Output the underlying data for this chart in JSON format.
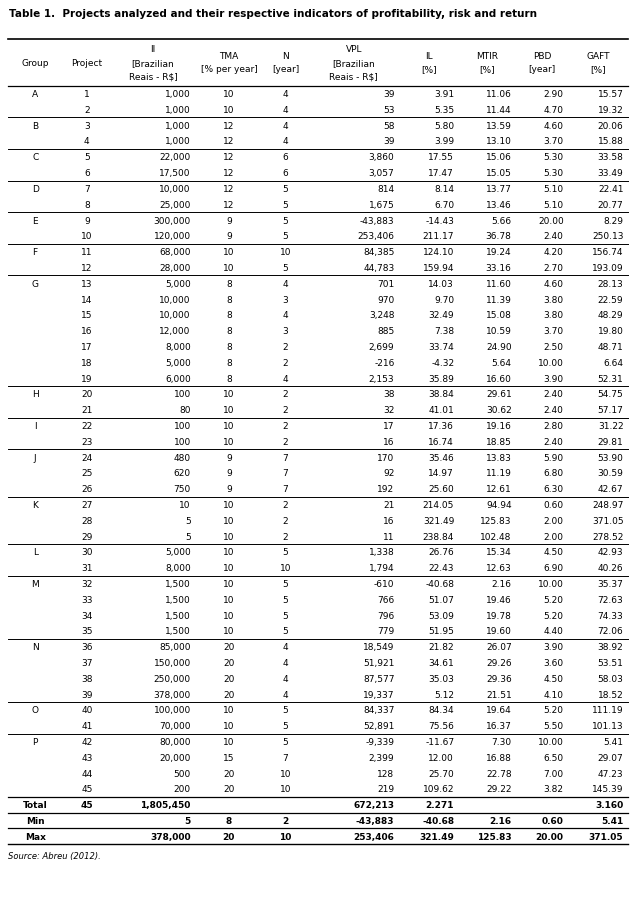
{
  "title": "Table 1.  Projects analyzed and their respective indicators of profitability, risk and return",
  "col_headers_line1": [
    "Group",
    "Project",
    "II",
    "TMA",
    "N",
    "VPL",
    "IL",
    "MTIR",
    "PBD",
    "GAFT"
  ],
  "col_headers_line2": [
    "",
    "",
    "[Brazilian",
    "[% per year]",
    "[year]",
    "[Brazilian",
    "[%]",
    "[%]",
    "[year]",
    "[%]"
  ],
  "col_headers_line3": [
    "",
    "",
    "Reais - R$]",
    "",
    "",
    "Reais - R$]",
    "",
    "",
    "",
    ""
  ],
  "rows": [
    [
      "A",
      "1",
      "1,000",
      "10",
      "4",
      "39",
      "3.91",
      "11.06",
      "2.90",
      "15.57"
    ],
    [
      "",
      "2",
      "1,000",
      "10",
      "4",
      "53",
      "5.35",
      "11.44",
      "4.70",
      "19.32"
    ],
    [
      "B",
      "3",
      "1,000",
      "12",
      "4",
      "58",
      "5.80",
      "13.59",
      "4.60",
      "20.06"
    ],
    [
      "",
      "4",
      "1,000",
      "12",
      "4",
      "39",
      "3.99",
      "13.10",
      "3.70",
      "15.88"
    ],
    [
      "C",
      "5",
      "22,000",
      "12",
      "6",
      "3,860",
      "17.55",
      "15.06",
      "5.30",
      "33.58"
    ],
    [
      "",
      "6",
      "17,500",
      "12",
      "6",
      "3,057",
      "17.47",
      "15.05",
      "5.30",
      "33.49"
    ],
    [
      "D",
      "7",
      "10,000",
      "12",
      "5",
      "814",
      "8.14",
      "13.77",
      "5.10",
      "22.41"
    ],
    [
      "",
      "8",
      "25,000",
      "12",
      "5",
      "1,675",
      "6.70",
      "13.46",
      "5.10",
      "20.77"
    ],
    [
      "E",
      "9",
      "300,000",
      "9",
      "5",
      "-43,883",
      "-14.43",
      "5.66",
      "20.00",
      "8.29"
    ],
    [
      "",
      "10",
      "120,000",
      "9",
      "5",
      "253,406",
      "211.17",
      "36.78",
      "2.40",
      "250.13"
    ],
    [
      "F",
      "11",
      "68,000",
      "10",
      "10",
      "84,385",
      "124.10",
      "19.24",
      "4.20",
      "156.74"
    ],
    [
      "",
      "12",
      "28,000",
      "10",
      "5",
      "44,783",
      "159.94",
      "33.16",
      "2.70",
      "193.09"
    ],
    [
      "G",
      "13",
      "5,000",
      "8",
      "4",
      "701",
      "14.03",
      "11.60",
      "4.60",
      "28.13"
    ],
    [
      "",
      "14",
      "10,000",
      "8",
      "3",
      "970",
      "9.70",
      "11.39",
      "3.80",
      "22.59"
    ],
    [
      "",
      "15",
      "10,000",
      "8",
      "4",
      "3,248",
      "32.49",
      "15.08",
      "3.80",
      "48.29"
    ],
    [
      "",
      "16",
      "12,000",
      "8",
      "3",
      "885",
      "7.38",
      "10.59",
      "3.70",
      "19.80"
    ],
    [
      "",
      "17",
      "8,000",
      "8",
      "2",
      "2,699",
      "33.74",
      "24.90",
      "2.50",
      "48.71"
    ],
    [
      "",
      "18",
      "5,000",
      "8",
      "2",
      "-216",
      "-4.32",
      "5.64",
      "10.00",
      "6.64"
    ],
    [
      "",
      "19",
      "6,000",
      "8",
      "4",
      "2,153",
      "35.89",
      "16.60",
      "3.90",
      "52.31"
    ],
    [
      "H",
      "20",
      "100",
      "10",
      "2",
      "38",
      "38.84",
      "29.61",
      "2.40",
      "54.75"
    ],
    [
      "",
      "21",
      "80",
      "10",
      "2",
      "32",
      "41.01",
      "30.62",
      "2.40",
      "57.17"
    ],
    [
      "I",
      "22",
      "100",
      "10",
      "2",
      "17",
      "17.36",
      "19.16",
      "2.80",
      "31.22"
    ],
    [
      "",
      "23",
      "100",
      "10",
      "2",
      "16",
      "16.74",
      "18.85",
      "2.40",
      "29.81"
    ],
    [
      "J",
      "24",
      "480",
      "9",
      "7",
      "170",
      "35.46",
      "13.83",
      "5.90",
      "53.90"
    ],
    [
      "",
      "25",
      "620",
      "9",
      "7",
      "92",
      "14.97",
      "11.19",
      "6.80",
      "30.59"
    ],
    [
      "",
      "26",
      "750",
      "9",
      "7",
      "192",
      "25.60",
      "12.61",
      "6.30",
      "42.67"
    ],
    [
      "K",
      "27",
      "10",
      "10",
      "2",
      "21",
      "214.05",
      "94.94",
      "0.60",
      "248.97"
    ],
    [
      "",
      "28",
      "5",
      "10",
      "2",
      "16",
      "321.49",
      "125.83",
      "2.00",
      "371.05"
    ],
    [
      "",
      "29",
      "5",
      "10",
      "2",
      "11",
      "238.84",
      "102.48",
      "2.00",
      "278.52"
    ],
    [
      "L",
      "30",
      "5,000",
      "10",
      "5",
      "1,338",
      "26.76",
      "15.34",
      "4.50",
      "42.93"
    ],
    [
      "",
      "31",
      "8,000",
      "10",
      "10",
      "1,794",
      "22.43",
      "12.63",
      "6.90",
      "40.26"
    ],
    [
      "M",
      "32",
      "1,500",
      "10",
      "5",
      "-610",
      "-40.68",
      "2.16",
      "10.00",
      "35.37"
    ],
    [
      "",
      "33",
      "1,500",
      "10",
      "5",
      "766",
      "51.07",
      "19.46",
      "5.20",
      "72.63"
    ],
    [
      "",
      "34",
      "1,500",
      "10",
      "5",
      "796",
      "53.09",
      "19.78",
      "5.20",
      "74.33"
    ],
    [
      "",
      "35",
      "1,500",
      "10",
      "5",
      "779",
      "51.95",
      "19.60",
      "4.40",
      "72.06"
    ],
    [
      "N",
      "36",
      "85,000",
      "20",
      "4",
      "18,549",
      "21.82",
      "26.07",
      "3.90",
      "38.92"
    ],
    [
      "",
      "37",
      "150,000",
      "20",
      "4",
      "51,921",
      "34.61",
      "29.26",
      "3.60",
      "53.51"
    ],
    [
      "",
      "38",
      "250,000",
      "20",
      "4",
      "87,577",
      "35.03",
      "29.36",
      "4.50",
      "58.03"
    ],
    [
      "",
      "39",
      "378,000",
      "20",
      "4",
      "19,337",
      "5.12",
      "21.51",
      "4.10",
      "18.52"
    ],
    [
      "O",
      "40",
      "100,000",
      "10",
      "5",
      "84,337",
      "84.34",
      "19.64",
      "5.20",
      "111.19"
    ],
    [
      "",
      "41",
      "70,000",
      "10",
      "5",
      "52,891",
      "75.56",
      "16.37",
      "5.50",
      "101.13"
    ],
    [
      "P",
      "42",
      "80,000",
      "10",
      "5",
      "-9,339",
      "-11.67",
      "7.30",
      "10.00",
      "5.41"
    ],
    [
      "",
      "43",
      "20,000",
      "15",
      "7",
      "2,399",
      "12.00",
      "16.88",
      "6.50",
      "29.07"
    ],
    [
      "",
      "44",
      "500",
      "20",
      "10",
      "128",
      "25.70",
      "22.78",
      "7.00",
      "47.23"
    ],
    [
      "",
      "45",
      "200",
      "20",
      "10",
      "219",
      "109.62",
      "29.22",
      "3.82",
      "145.39"
    ],
    [
      "Total",
      "45",
      "1,805,450",
      "",
      "",
      "672,213",
      "2.271",
      "",
      "",
      "3.160"
    ],
    [
      "Min",
      "",
      "5",
      "8",
      "2",
      "-43,883",
      "-40.68",
      "2.16",
      "0.60",
      "5.41"
    ],
    [
      "Max",
      "",
      "378,000",
      "20",
      "10",
      "253,406",
      "321.49",
      "125.83",
      "20.00",
      "371.05"
    ]
  ],
  "group_start_rows": [
    0,
    2,
    4,
    6,
    8,
    10,
    12,
    19,
    21,
    23,
    26,
    29,
    31,
    35,
    39,
    41
  ],
  "summary_rows": [
    45,
    46,
    47
  ],
  "footer": "Source: Abreu (2012).",
  "col_props": [
    0.072,
    0.063,
    0.11,
    0.088,
    0.06,
    0.118,
    0.078,
    0.075,
    0.068,
    0.078
  ],
  "data_align": [
    "center",
    "center",
    "right",
    "center",
    "center",
    "right",
    "right",
    "right",
    "right",
    "right"
  ]
}
